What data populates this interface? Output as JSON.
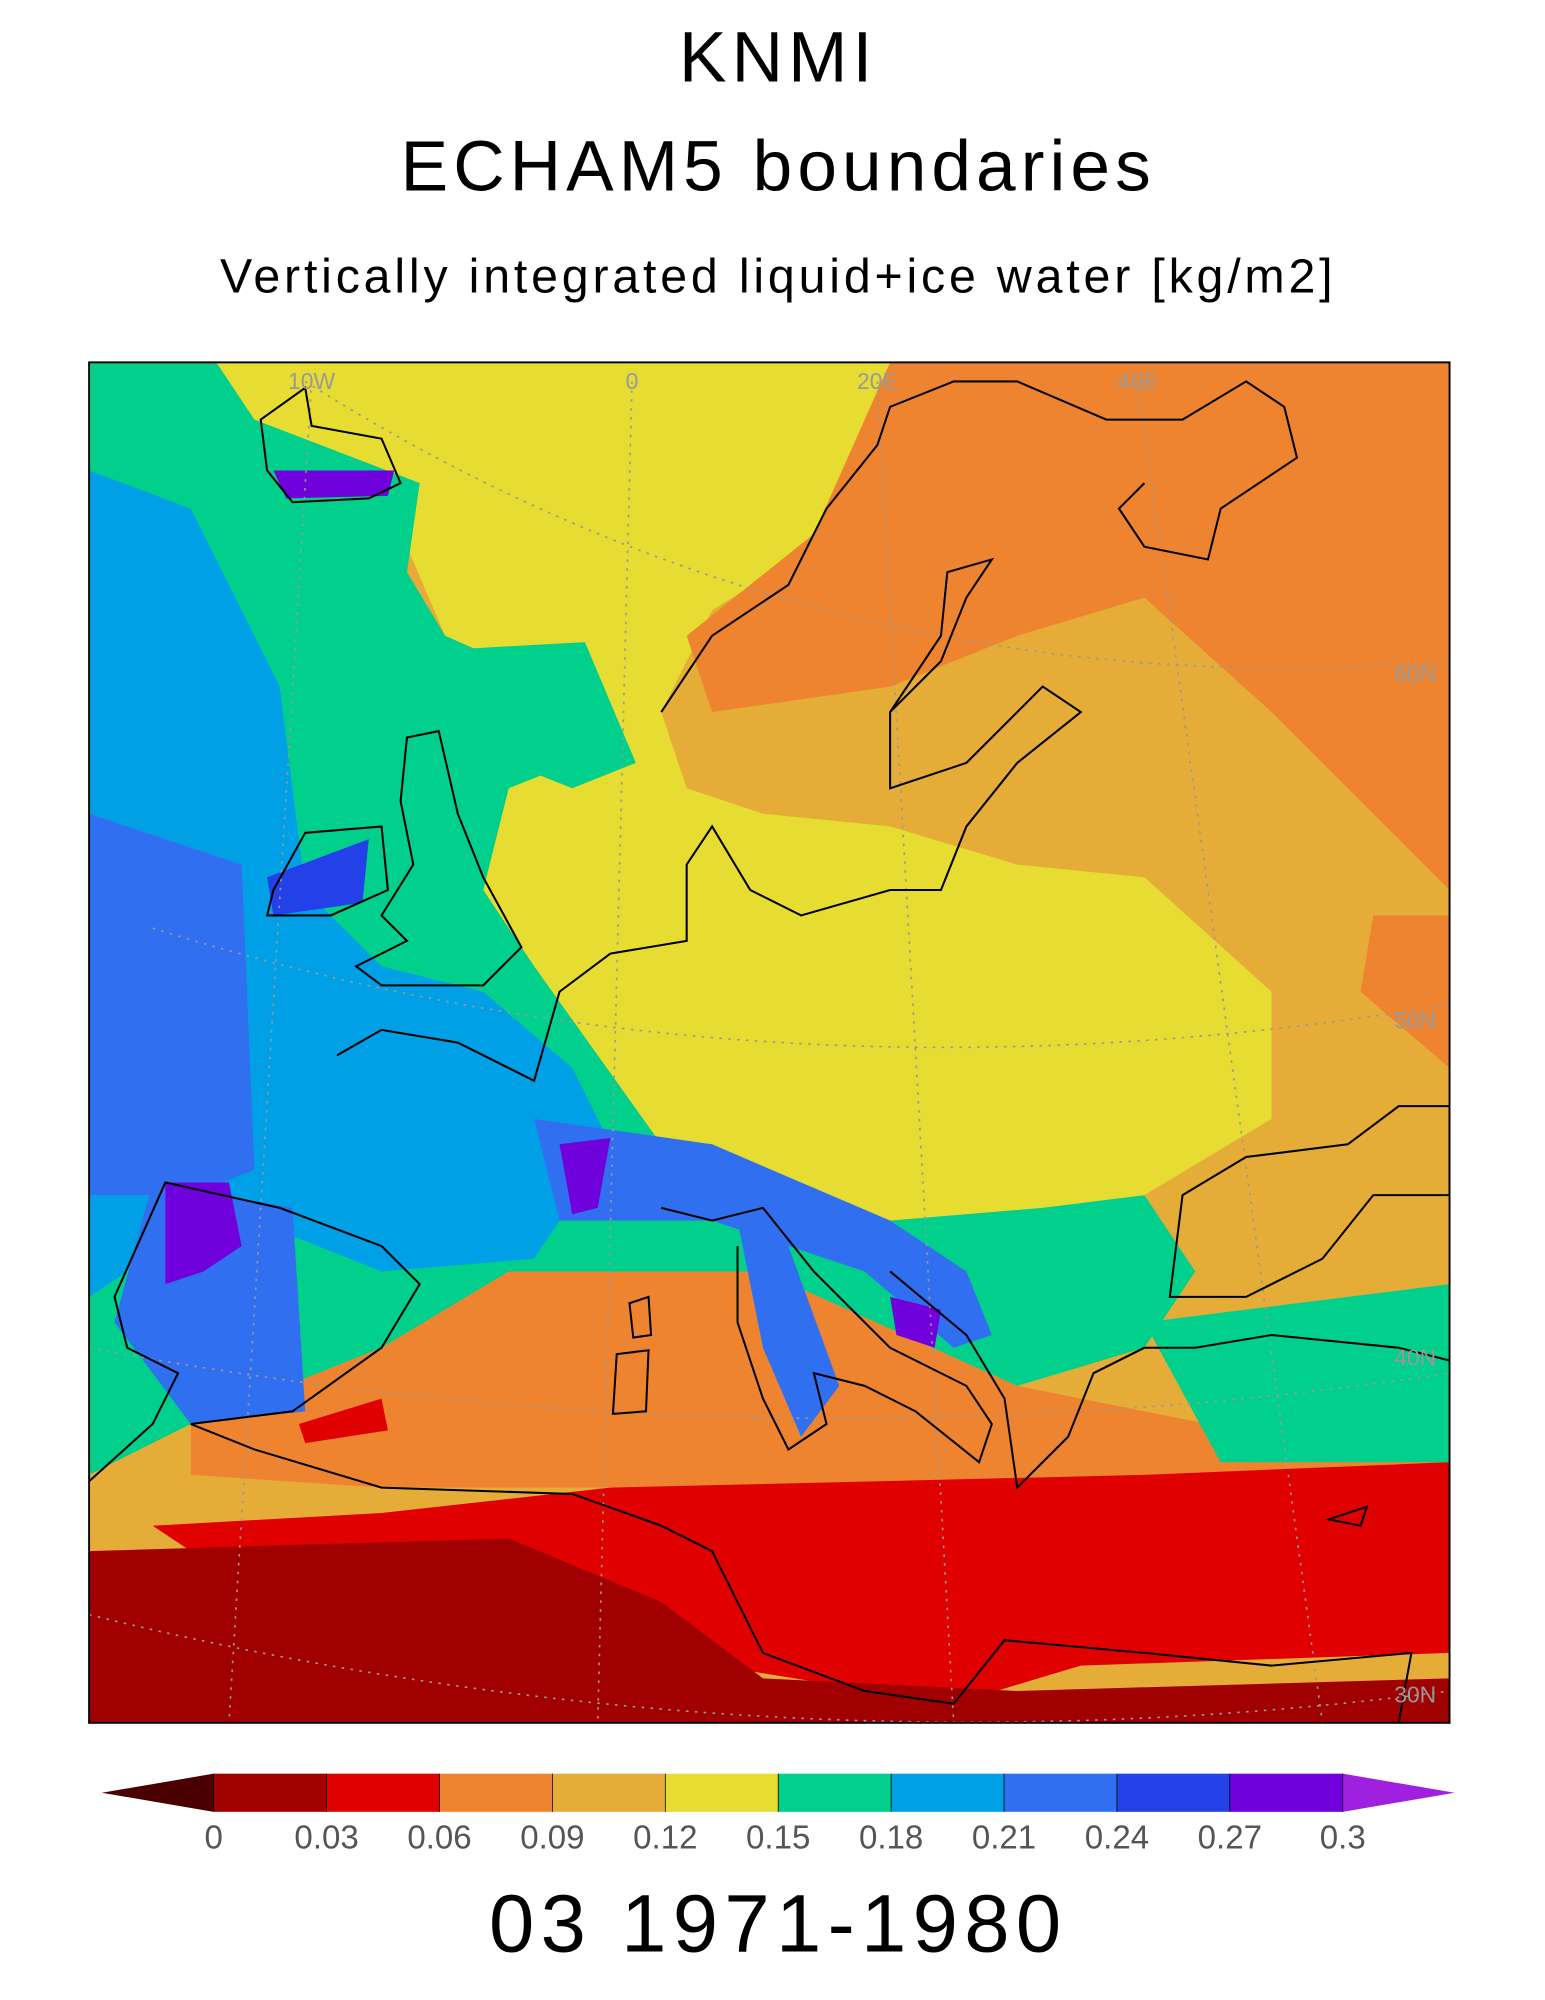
{
  "header": {
    "title": "KNMI",
    "subtitle": "ECHAM5 boundaries",
    "variable": "Vertically integrated liquid+ice water [kg/m2]"
  },
  "map": {
    "lon_labels": [
      "10W",
      "0",
      "20E",
      "40E"
    ],
    "lat_labels": [
      "60N",
      "50N",
      "40N",
      "30N"
    ]
  },
  "colorbar": {
    "ticks": [
      0,
      0.03,
      0.06,
      0.09,
      0.12,
      0.15,
      0.18,
      0.21,
      0.24,
      0.27,
      0.3
    ],
    "colors": [
      "#4a0000",
      "#a00000",
      "#e00000",
      "#ee8430",
      "#e6ac38",
      "#e6dc32",
      "#00d08c",
      "#00a0e6",
      "#3070f0",
      "#2440e8",
      "#7000dc",
      "#a020e0"
    ]
  },
  "footer": {
    "period": "03 1971-1980"
  }
}
